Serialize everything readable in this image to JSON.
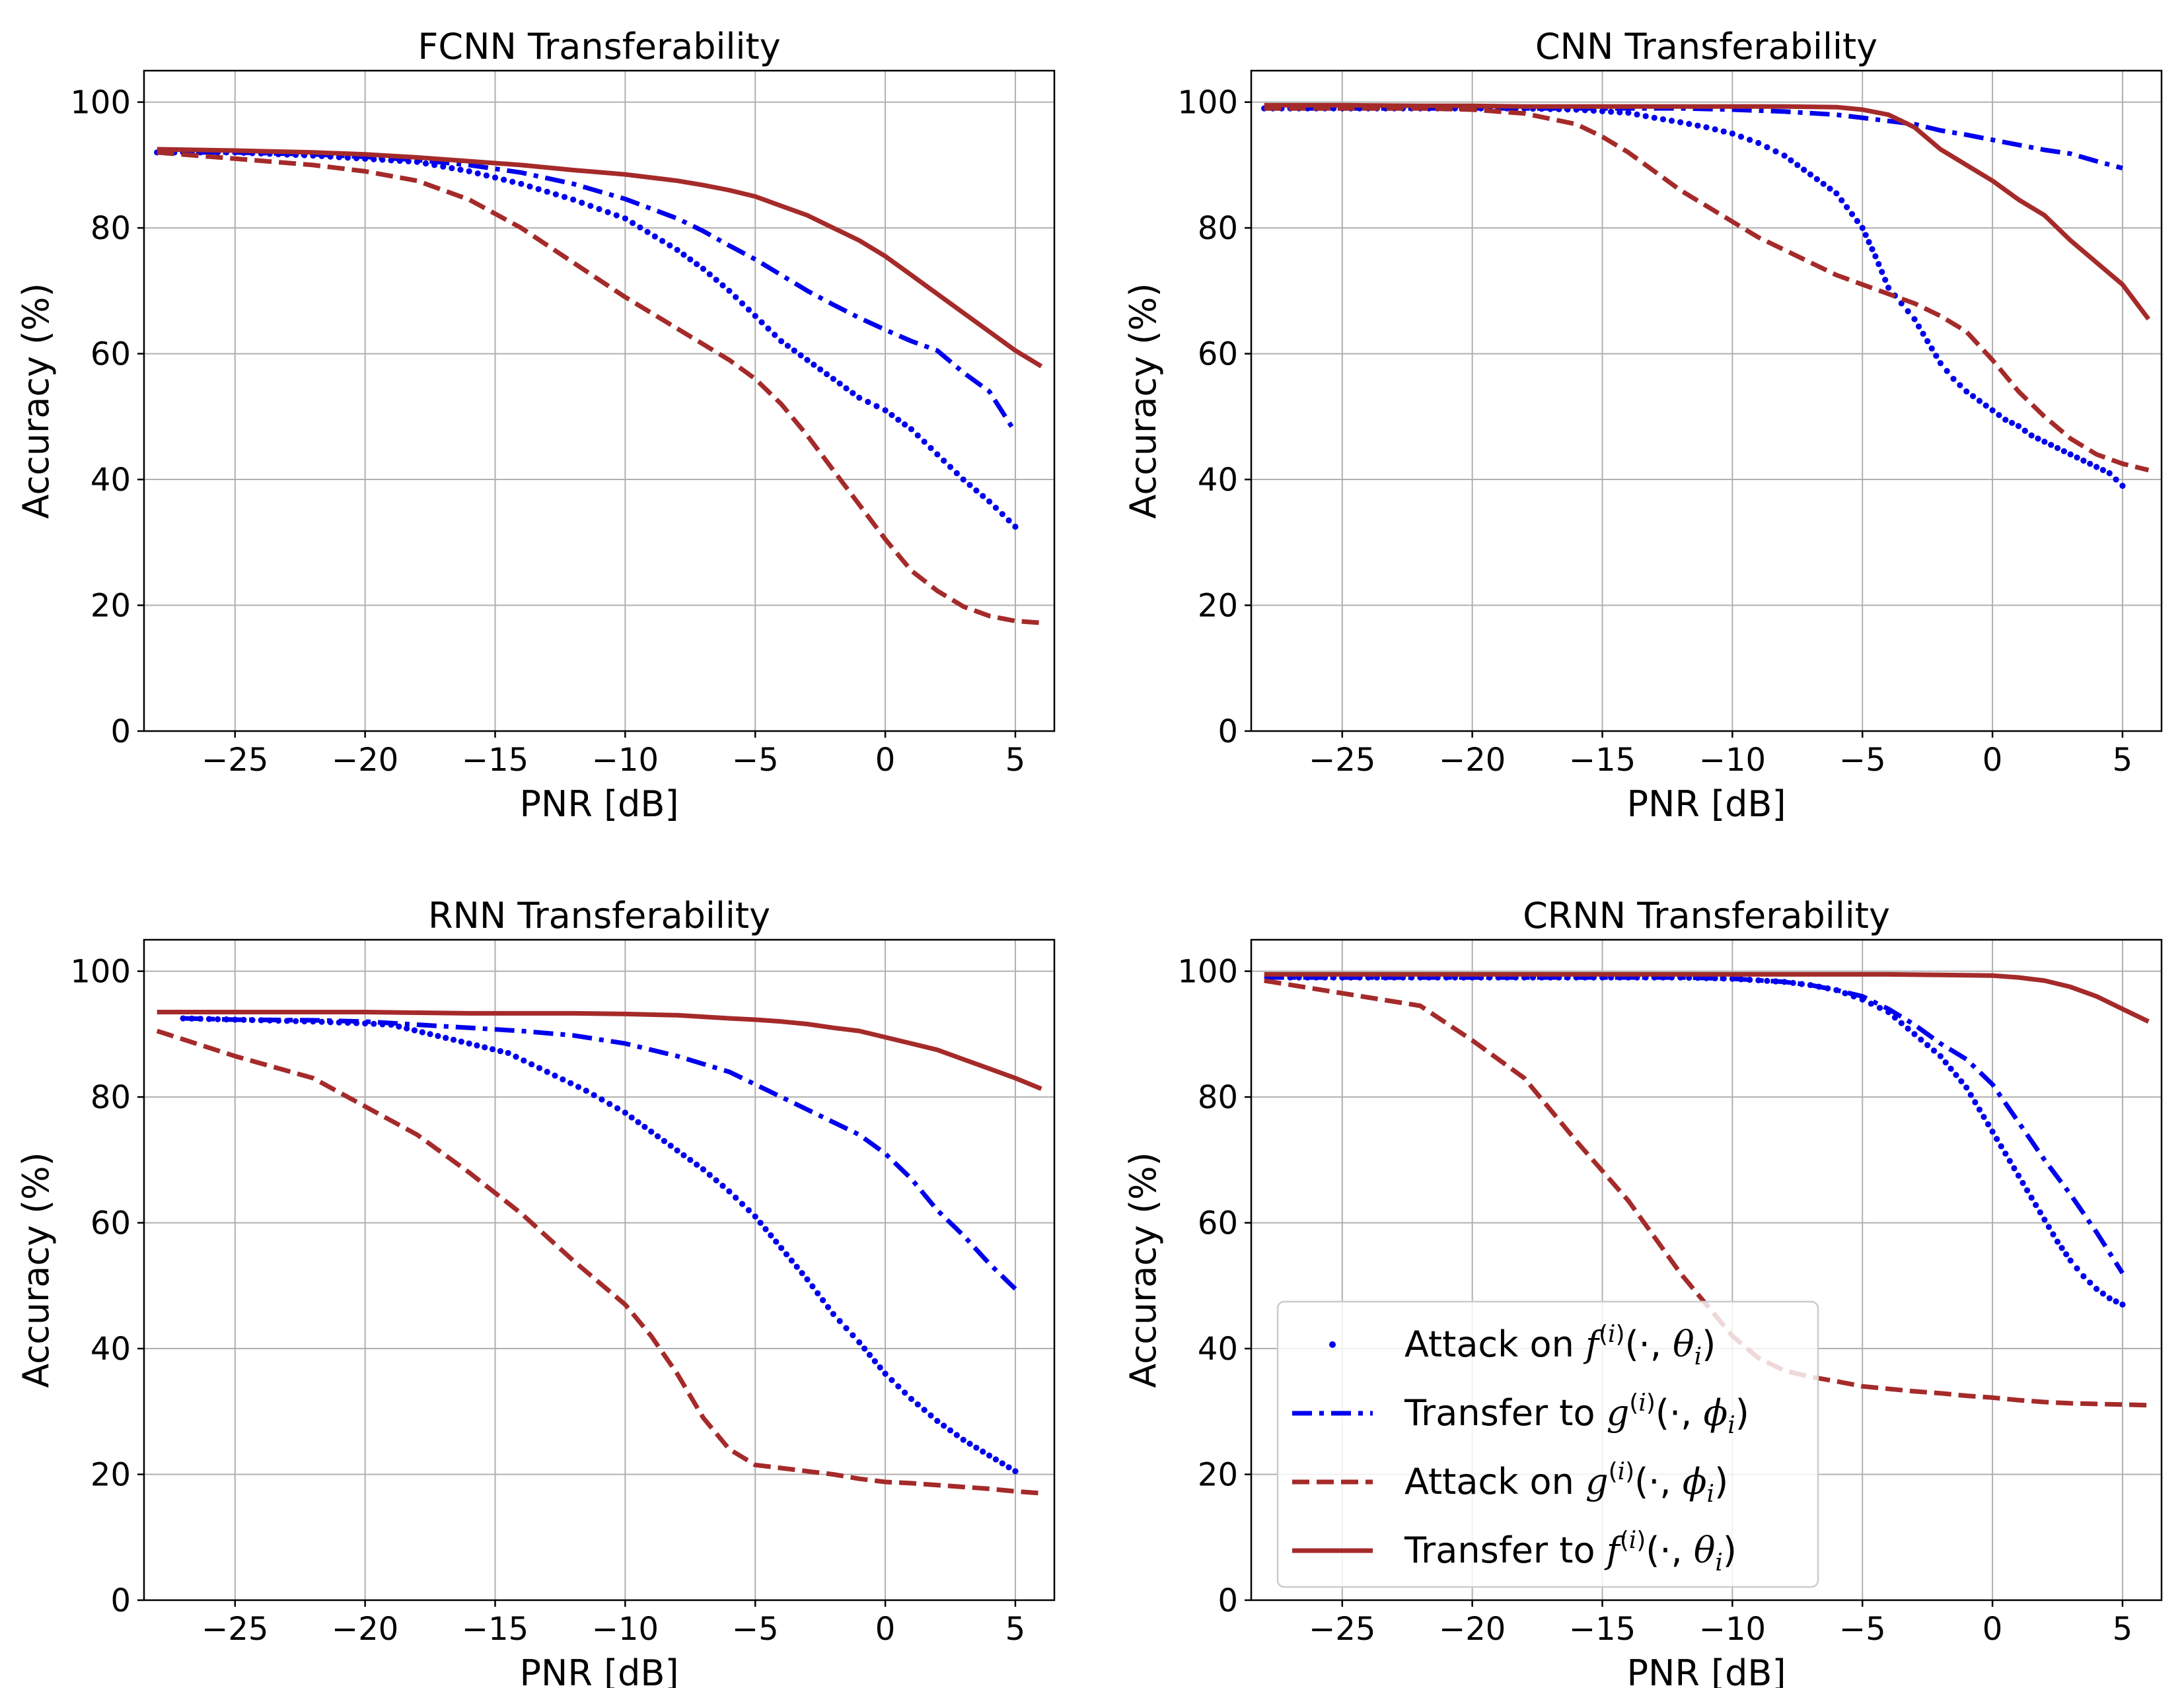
{
  "chart_data": [
    {
      "type": "line",
      "title": "FCNN Transferability",
      "xlabel": "PNR [dB]",
      "ylabel": "Accuracy (%)",
      "xlim": [
        -28.5,
        6.5
      ],
      "ylim": [
        0,
        105
      ],
      "xticks": [
        -25,
        -20,
        -15,
        -10,
        -5,
        0,
        5
      ],
      "xtick_labels": [
        "−25",
        "−20",
        "−15",
        "−10",
        "−5",
        "0",
        "5"
      ],
      "yticks": [
        0,
        20,
        40,
        60,
        80,
        100
      ],
      "ytick_labels": [
        "0",
        "20",
        "40",
        "60",
        "80",
        "100"
      ],
      "grid": true,
      "series": [
        {
          "name": "Attack on f(i)(·,θi)",
          "style": "dotted",
          "color": "#0000ee",
          "x": [
            -28,
            -25,
            -22,
            -20,
            -18,
            -16,
            -14,
            -12,
            -10,
            -8,
            -7,
            -6,
            -5,
            -4,
            -3,
            -2,
            -1,
            0,
            1,
            2,
            3,
            4,
            5
          ],
          "y": [
            92,
            92,
            91.5,
            91,
            90.5,
            89,
            87,
            84.5,
            81.5,
            76.5,
            73.5,
            70,
            66,
            62,
            59,
            56,
            53,
            51,
            48,
            44,
            40,
            36.5,
            32.5
          ]
        },
        {
          "name": "Transfer to g(i)(·,ϕi)",
          "style": "dashdot",
          "color": "#0000ee",
          "x": [
            -28,
            -25,
            -22,
            -20,
            -18,
            -16,
            -14,
            -12,
            -10,
            -8,
            -7,
            -6,
            -5,
            -4,
            -3,
            -2,
            -1,
            0,
            1,
            2,
            3,
            4,
            5
          ],
          "y": [
            92,
            92,
            91.7,
            91.3,
            90.8,
            90,
            88.8,
            87,
            84.6,
            81.5,
            79.5,
            77.2,
            75,
            72.5,
            70,
            67.8,
            65.7,
            63.8,
            62,
            60.5,
            57,
            54,
            47.5
          ]
        },
        {
          "name": "Attack on g(i)(·,ϕi)",
          "style": "dashed",
          "color": "#a52a2a",
          "x": [
            -28,
            -25,
            -22,
            -20,
            -18,
            -16,
            -14,
            -12,
            -10,
            -8,
            -7,
            -6,
            -5,
            -4,
            -3,
            -2,
            -1,
            0,
            1,
            2,
            3,
            4,
            5,
            6
          ],
          "y": [
            92,
            91,
            90,
            89,
            87.5,
            84.5,
            80,
            74.5,
            69,
            64,
            61.5,
            59,
            56,
            52,
            47,
            41.5,
            36,
            30.5,
            25.5,
            22.3,
            19.8,
            18.3,
            17.5,
            17.2
          ]
        },
        {
          "name": "Transfer to f(i)(·,θi)",
          "style": "solid",
          "color": "#a52a2a",
          "x": [
            -28,
            -25,
            -22,
            -20,
            -18,
            -16,
            -14,
            -12,
            -10,
            -8,
            -7,
            -6,
            -5,
            -4,
            -3,
            -2,
            -1,
            0,
            1,
            2,
            3,
            4,
            5,
            6
          ],
          "y": [
            92.5,
            92.3,
            92,
            91.7,
            91.2,
            90.6,
            90,
            89.2,
            88.5,
            87.5,
            86.8,
            86,
            85,
            83.5,
            82,
            80,
            78,
            75.5,
            72.5,
            69.5,
            66.5,
            63.5,
            60.5,
            58
          ]
        }
      ]
    },
    {
      "type": "line",
      "title": "CNN Transferability",
      "xlabel": "PNR [dB]",
      "ylabel": "Accuracy (%)",
      "xlim": [
        -28.5,
        6.5
      ],
      "ylim": [
        0,
        105
      ],
      "xticks": [
        -25,
        -20,
        -15,
        -10,
        -5,
        0,
        5
      ],
      "xtick_labels": [
        "−25",
        "−20",
        "−15",
        "−10",
        "−5",
        "0",
        "5"
      ],
      "yticks": [
        0,
        20,
        40,
        60,
        80,
        100
      ],
      "ytick_labels": [
        "0",
        "20",
        "40",
        "60",
        "80",
        "100"
      ],
      "grid": true,
      "series": [
        {
          "name": "Attack on f(i)(·,θi)",
          "style": "dotted",
          "color": "#0000ee",
          "x": [
            -28,
            -25,
            -22,
            -20,
            -18,
            -16,
            -14,
            -13,
            -12,
            -11,
            -10,
            -9,
            -8,
            -7,
            -6,
            -5,
            -4.5,
            -4,
            -3.5,
            -3,
            -2.5,
            -2,
            -1.5,
            -1,
            -0.5,
            0,
            0.5,
            1,
            1.5,
            2,
            2.5,
            3,
            3.5,
            4,
            4.5,
            5
          ],
          "y": [
            99,
            99,
            99,
            99,
            99,
            98.8,
            98.3,
            97.5,
            96.8,
            96,
            95,
            93.5,
            91.5,
            88.5,
            85.5,
            80,
            75.5,
            70.5,
            68,
            65.5,
            62,
            58.5,
            56,
            54,
            52.5,
            51,
            49.5,
            48.5,
            47,
            46,
            45,
            44,
            43,
            42,
            41,
            39
          ]
        },
        {
          "name": "Transfer to g(i)(·,ϕi)",
          "style": "dashdot",
          "color": "#0000ee",
          "x": [
            -28,
            -25,
            -22,
            -20,
            -18,
            -16,
            -14,
            -12,
            -10,
            -8,
            -6,
            -5,
            -4,
            -3,
            -2,
            -1,
            0,
            1,
            2,
            3,
            4,
            5
          ],
          "y": [
            99,
            99,
            99,
            99,
            99,
            99,
            99,
            99,
            98.8,
            98.5,
            98,
            97.5,
            97,
            96.5,
            95.5,
            94.8,
            94,
            93.2,
            92.4,
            91.8,
            90.6,
            89.5
          ]
        },
        {
          "name": "Attack on g(i)(·,ϕi)",
          "style": "dashed",
          "color": "#a52a2a",
          "x": [
            -28,
            -25,
            -22,
            -20,
            -18,
            -16,
            -15,
            -14,
            -13,
            -12,
            -11,
            -10,
            -9,
            -8,
            -7,
            -6,
            -5,
            -4,
            -3,
            -2,
            -1,
            0,
            1,
            2,
            3,
            4,
            5,
            6
          ],
          "y": [
            99,
            99,
            99,
            98.8,
            98.2,
            96.5,
            94.5,
            92,
            89,
            86,
            83.5,
            81,
            78.5,
            76.5,
            74.5,
            72.5,
            71,
            69.5,
            68,
            66,
            63.5,
            59,
            54,
            50,
            46.5,
            44,
            42.5,
            41.5
          ]
        },
        {
          "name": "Transfer to f(i)(·,θi)",
          "style": "solid",
          "color": "#a52a2a",
          "x": [
            -28,
            -25,
            -22,
            -20,
            -18,
            -16,
            -14,
            -12,
            -10,
            -8,
            -6,
            -5,
            -4,
            -3,
            -2,
            -1,
            0,
            1,
            2,
            3,
            4,
            5,
            6
          ],
          "y": [
            99.5,
            99.5,
            99.4,
            99.4,
            99.3,
            99.3,
            99.3,
            99.3,
            99.3,
            99.3,
            99.2,
            98.8,
            98,
            96,
            92.5,
            90,
            87.5,
            84.5,
            82,
            78,
            74.5,
            71,
            65.5
          ]
        }
      ]
    },
    {
      "type": "line",
      "title": "RNN Transferability",
      "xlabel": "PNR [dB]",
      "ylabel": "Accuracy (%)",
      "xlim": [
        -28.5,
        6.5
      ],
      "ylim": [
        0,
        105
      ],
      "xticks": [
        -25,
        -20,
        -15,
        -10,
        -5,
        0,
        5
      ],
      "xtick_labels": [
        "−25",
        "−20",
        "−15",
        "−10",
        "−5",
        "0",
        "5"
      ],
      "yticks": [
        0,
        20,
        40,
        60,
        80,
        100
      ],
      "ytick_labels": [
        "0",
        "20",
        "40",
        "60",
        "80",
        "100"
      ],
      "grid": true,
      "series": [
        {
          "name": "Attack on f(i)(·,θi)",
          "style": "dotted",
          "color": "#0000ee",
          "x": [
            -27,
            -25,
            -22,
            -20,
            -19,
            -17.5,
            -16,
            -14.5,
            -13,
            -11.5,
            -10,
            -9,
            -8,
            -7,
            -6,
            -5,
            -4,
            -3,
            -2,
            -1,
            0,
            0.5,
            1,
            2,
            3,
            4,
            5
          ],
          "y": [
            92.5,
            92.3,
            92,
            91.7,
            91.5,
            90,
            88.5,
            87,
            84,
            81,
            77.5,
            74.5,
            71.5,
            68.5,
            65,
            61,
            56,
            51,
            45.5,
            41,
            36,
            34,
            32,
            28.5,
            25.5,
            23,
            20.5
          ]
        },
        {
          "name": "Transfer to g(i)(·,ϕi)",
          "style": "dashdot",
          "color": "#0000ee",
          "x": [
            -27,
            -25,
            -22,
            -20,
            -18,
            -16,
            -14,
            -12,
            -10,
            -8,
            -6,
            -5,
            -4,
            -3,
            -2,
            -1,
            0,
            1,
            2,
            3,
            4,
            5
          ],
          "y": [
            92.5,
            92.3,
            92.2,
            92,
            91.5,
            91,
            90.5,
            89.8,
            88.5,
            86.5,
            84,
            82,
            80,
            78,
            76,
            74,
            71,
            67,
            62,
            58,
            53.5,
            49.5
          ]
        },
        {
          "name": "Attack on g(i)(·,ϕi)",
          "style": "dashed",
          "color": "#a52a2a",
          "x": [
            -28,
            -25,
            -22,
            -20,
            -18,
            -16,
            -14,
            -12,
            -10,
            -9,
            -8,
            -7,
            -6,
            -5,
            -4,
            -3,
            -2,
            -1,
            0,
            1,
            2,
            3,
            4,
            5,
            6
          ],
          "y": [
            90.5,
            86.5,
            83,
            78.5,
            74,
            68,
            61.5,
            54,
            47,
            42,
            36,
            29,
            24,
            21.5,
            21,
            20.5,
            20,
            19.3,
            18.8,
            18.6,
            18.3,
            18,
            17.7,
            17.3,
            17
          ]
        },
        {
          "name": "Transfer to f(i)(·,θi)",
          "style": "solid",
          "color": "#a52a2a",
          "x": [
            -28,
            -25,
            -22,
            -20,
            -18,
            -16,
            -14,
            -12,
            -10,
            -8,
            -6,
            -5,
            -4,
            -3,
            -2,
            -1,
            0,
            1,
            2,
            3,
            4,
            5,
            6
          ],
          "y": [
            93.5,
            93.5,
            93.5,
            93.5,
            93.4,
            93.3,
            93.3,
            93.3,
            93.2,
            93,
            92.5,
            92.3,
            92,
            91.6,
            91,
            90.5,
            89.5,
            88.5,
            87.5,
            86,
            84.5,
            83,
            81.3
          ]
        }
      ]
    },
    {
      "type": "line",
      "title": "CRNN Transferability",
      "xlabel": "PNR [dB]",
      "ylabel": "Accuracy (%)",
      "xlim": [
        -28.5,
        6.5
      ],
      "ylim": [
        0,
        105
      ],
      "xticks": [
        -25,
        -20,
        -15,
        -10,
        -5,
        0,
        5
      ],
      "xtick_labels": [
        "−25",
        "−20",
        "−15",
        "−10",
        "−5",
        "0",
        "5"
      ],
      "yticks": [
        0,
        20,
        40,
        60,
        80,
        100
      ],
      "ytick_labels": [
        "0",
        "20",
        "40",
        "60",
        "80",
        "100"
      ],
      "grid": true,
      "legend": {
        "location": "lower-left",
        "entries": [
          {
            "prefix": "Attack on ",
            "fn": "f",
            "arg": "θ"
          },
          {
            "prefix": "Transfer to ",
            "fn": "g",
            "arg": "ϕ"
          },
          {
            "prefix": "Attack on ",
            "fn": "g",
            "arg": "ϕ"
          },
          {
            "prefix": "Transfer to ",
            "fn": "f",
            "arg": "θ"
          }
        ]
      },
      "series": [
        {
          "name": "Attack on f(i)(·,θi)",
          "style": "dotted",
          "color": "#0000ee",
          "x": [
            -27,
            -25,
            -22,
            -20,
            -18,
            -16,
            -14,
            -12,
            -10,
            -8,
            -7,
            -6,
            -5,
            -4,
            -3,
            -2,
            -1,
            -0.5,
            0,
            0.5,
            1,
            1.5,
            2,
            2.5,
            3,
            3.5,
            4,
            4.5,
            5
          ],
          "y": [
            99,
            99,
            99,
            99,
            99,
            99,
            99,
            99,
            98.8,
            98.3,
            97.8,
            97,
            95.5,
            93.5,
            90,
            86.5,
            81.5,
            78,
            74.5,
            71,
            67.5,
            64,
            60.5,
            57,
            54,
            51.5,
            49.5,
            48,
            47
          ]
        },
        {
          "name": "Transfer to g(i)(·,ϕi)",
          "style": "dashdot",
          "color": "#0000ee",
          "x": [
            -28,
            -25,
            -22,
            -20,
            -18,
            -16,
            -14,
            -12,
            -10,
            -8,
            -7,
            -6,
            -5,
            -4,
            -3,
            -2,
            -1,
            0,
            1,
            2,
            3,
            4,
            5
          ],
          "y": [
            99,
            99,
            99,
            99,
            99,
            99,
            99,
            99,
            98.8,
            98.3,
            97.8,
            97,
            96,
            94,
            91.5,
            88.5,
            86,
            82,
            76,
            70,
            64.5,
            58.5,
            52
          ]
        },
        {
          "name": "Attack on g(i)(·,ϕi)",
          "style": "dashed",
          "color": "#a52a2a",
          "x": [
            -28,
            -25,
            -22,
            -20,
            -18,
            -16,
            -14,
            -12,
            -11,
            -10,
            -9,
            -8,
            -7,
            -6,
            -5,
            -4,
            -3,
            -2,
            -1,
            0,
            1,
            2,
            3,
            4,
            5,
            6
          ],
          "y": [
            98.5,
            96.5,
            94.5,
            89,
            83,
            73,
            63.5,
            52,
            47,
            42,
            38.5,
            36.5,
            35.5,
            34.8,
            34,
            33.6,
            33.2,
            32.9,
            32.5,
            32.2,
            31.8,
            31.5,
            31.3,
            31.2,
            31.1,
            31
          ]
        },
        {
          "name": "Transfer to f(i)(·,θi)",
          "style": "solid",
          "color": "#a52a2a",
          "x": [
            -28,
            -25,
            -22,
            -20,
            -18,
            -16,
            -14,
            -12,
            -10,
            -8,
            -6,
            -4,
            -2,
            0,
            1,
            2,
            3,
            4,
            5,
            6
          ],
          "y": [
            99.5,
            99.5,
            99.5,
            99.5,
            99.5,
            99.5,
            99.5,
            99.5,
            99.5,
            99.5,
            99.5,
            99.5,
            99.4,
            99.3,
            99,
            98.5,
            97.5,
            96,
            94,
            92
          ]
        }
      ]
    }
  ]
}
